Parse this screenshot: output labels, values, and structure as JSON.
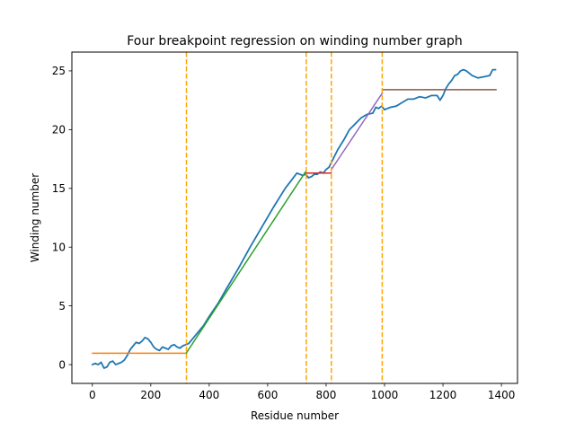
{
  "chart_data": {
    "type": "line",
    "title": "Four breakpoint regression on winding number graph",
    "xlabel": "Residue number",
    "ylabel": "Winding number",
    "xlim": [
      -70,
      1455
    ],
    "ylim": [
      -1.6,
      26.6
    ],
    "xticks": [
      0,
      200,
      400,
      600,
      800,
      1000,
      1200,
      1400
    ],
    "yticks": [
      0,
      5,
      10,
      15,
      20,
      25
    ],
    "grid": false,
    "legend": "none",
    "series": [
      {
        "color": "#1f77b4",
        "x": [
          0,
          10,
          20,
          30,
          40,
          50,
          60,
          70,
          80,
          90,
          100,
          110,
          120,
          130,
          140,
          150,
          160,
          170,
          180,
          190,
          200,
          210,
          220,
          230,
          240,
          250,
          260,
          270,
          280,
          290,
          300,
          310,
          320,
          330,
          340,
          360,
          380,
          400,
          430,
          460,
          500,
          540,
          580,
          620,
          660,
          700,
          720,
          730,
          740,
          750,
          760,
          770,
          780,
          790,
          800,
          810,
          820,
          830,
          840,
          860,
          880,
          900,
          920,
          940,
          960,
          970,
          980,
          990,
          1000,
          1010,
          1020,
          1040,
          1060,
          1080,
          1100,
          1120,
          1140,
          1160,
          1180,
          1190,
          1200,
          1210,
          1220,
          1230,
          1240,
          1250,
          1260,
          1270,
          1280,
          1290,
          1300,
          1320,
          1340,
          1360,
          1370,
          1380
        ],
        "y": [
          0.0,
          0.1,
          0.0,
          0.2,
          -0.3,
          -0.2,
          0.2,
          0.3,
          0.0,
          0.1,
          0.2,
          0.4,
          0.8,
          1.3,
          1.6,
          1.9,
          1.8,
          2.0,
          2.3,
          2.2,
          1.9,
          1.5,
          1.3,
          1.2,
          1.5,
          1.4,
          1.3,
          1.6,
          1.7,
          1.5,
          1.4,
          1.6,
          1.7,
          1.8,
          2.1,
          2.7,
          3.3,
          4.1,
          5.2,
          6.5,
          8.2,
          10.0,
          11.7,
          13.4,
          15.0,
          16.3,
          16.1,
          16.2,
          15.9,
          16.0,
          16.2,
          16.2,
          16.4,
          16.3,
          16.6,
          16.8,
          17.3,
          17.8,
          18.3,
          19.1,
          20.0,
          20.5,
          21.0,
          21.3,
          21.4,
          21.9,
          21.8,
          22.0,
          21.7,
          21.8,
          21.9,
          22.0,
          22.3,
          22.6,
          22.6,
          22.8,
          22.7,
          22.9,
          22.9,
          22.5,
          22.9,
          23.5,
          23.9,
          24.2,
          24.6,
          24.7,
          25.0,
          25.1,
          25.0,
          24.8,
          24.6,
          24.4,
          24.5,
          24.6,
          25.1,
          25.1
        ]
      },
      {
        "color": "#ff7f0e",
        "x": [
          0,
          322
        ],
        "y": [
          0.97,
          0.97
        ]
      },
      {
        "color": "#2ca02c",
        "x": [
          322,
          732
        ],
        "y": [
          1.0,
          16.5
        ]
      },
      {
        "color": "#d62728",
        "x": [
          732,
          818
        ],
        "y": [
          16.3,
          16.3
        ]
      },
      {
        "color": "#9467bd",
        "x": [
          818,
          992
        ],
        "y": [
          16.6,
          23.1
        ]
      },
      {
        "color": "#8c564b",
        "x": [
          992,
          1382
        ],
        "y": [
          23.4,
          23.4
        ]
      }
    ],
    "breakpoints": [
      322,
      732,
      818,
      992
    ],
    "breakpoint_color": "#ffa500"
  }
}
